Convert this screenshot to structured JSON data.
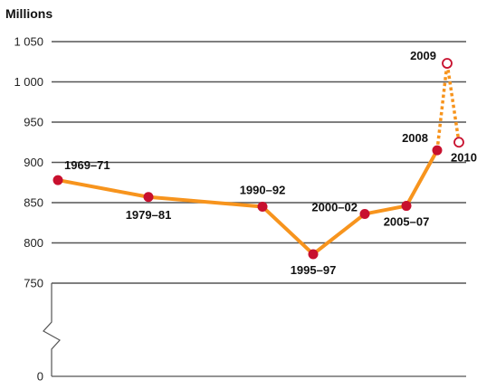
{
  "chart_data": {
    "type": "line",
    "title": "",
    "ylabel": "Millions",
    "xlabel": "",
    "ylim": [
      0,
      1050
    ],
    "axis_break": [
      0,
      750
    ],
    "yticks": [
      "0",
      "750",
      "800",
      "850",
      "900",
      "950",
      "1 000",
      "1 050"
    ],
    "grid": true,
    "series": [
      {
        "color": "#f7941d",
        "marker_color": "#c8102e",
        "style": "solid",
        "points": [
          {
            "label": "1969–71",
            "y": 878
          },
          {
            "label": "1979–81",
            "y": 857
          },
          {
            "label": "1990–92",
            "y": 845
          },
          {
            "label": "1995–97",
            "y": 786
          },
          {
            "label": "2000–02",
            "y": 836
          },
          {
            "label": "2005–07",
            "y": 846
          },
          {
            "label": "2008",
            "y": 915
          }
        ]
      },
      {
        "color": "#f7941d",
        "marker_color": "#c8102e",
        "style": "dotted",
        "hollow_markers": true,
        "points": [
          {
            "label": "2008",
            "y": 915
          },
          {
            "label": "2009",
            "y": 1023
          },
          {
            "label": "2010",
            "y": 925
          }
        ]
      }
    ]
  }
}
